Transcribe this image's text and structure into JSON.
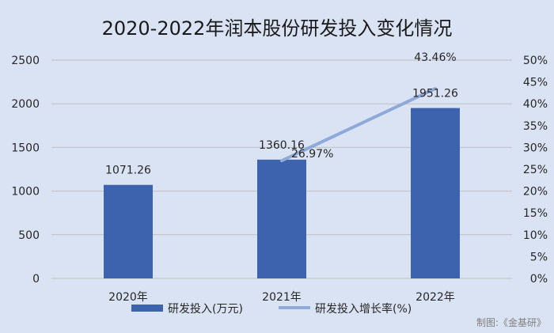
{
  "chart_data": {
    "type": "bar",
    "title": "2020-2022年润本股份研发投入变化情况",
    "categories": [
      "2020年",
      "2021年",
      "2022年"
    ],
    "series": [
      {
        "name": "研发投入(万元)",
        "kind": "bar",
        "axis": "left",
        "values": [
          1071.26,
          1360.16,
          1951.26
        ],
        "labels": [
          "1071.26",
          "1360.16",
          "1951.26"
        ],
        "color": "#3d63ae"
      },
      {
        "name": "研发投入增长率(%)",
        "kind": "line",
        "axis": "right",
        "values": [
          null,
          26.97,
          43.46
        ],
        "labels": [
          "",
          "26.97%",
          "43.46%"
        ],
        "color": "#8fa9d9"
      }
    ],
    "ylim": [
      0,
      2500
    ],
    "yticks": [
      "0",
      "500",
      "1000",
      "1500",
      "2000",
      "2500"
    ],
    "y2lim": [
      0,
      50
    ],
    "y2ticks": [
      "0%",
      "5%",
      "10%",
      "15%",
      "20%",
      "25%",
      "30%",
      "35%",
      "40%",
      "45%",
      "50%"
    ],
    "grid": true,
    "legend_position": "bottom"
  },
  "credit": "制图:《金基研》",
  "colors": {
    "background": "#dae3f3",
    "grid": "#bfbfbf"
  }
}
